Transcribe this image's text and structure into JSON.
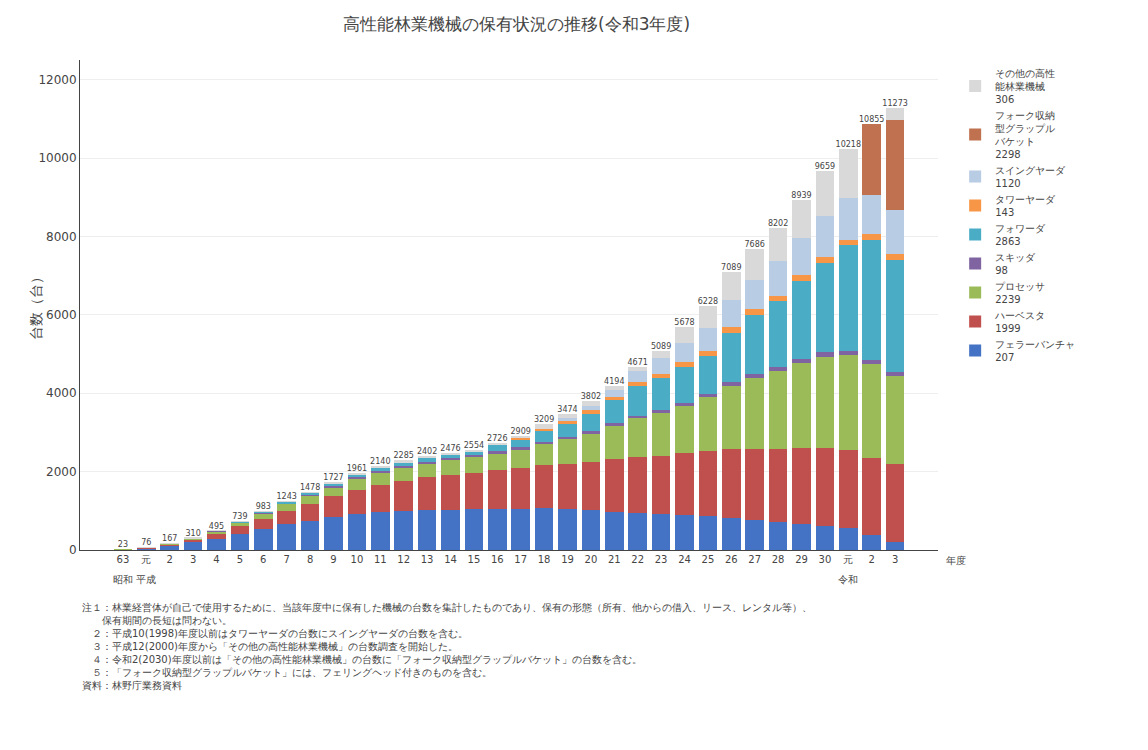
{
  "chart_data": {
    "type": "bar",
    "stacked": true,
    "title": "高性能林業機械の保有状況の推移(令和3年度)",
    "ylabel": "台数（台）",
    "xlabel": "年度",
    "categories": [
      "63",
      "元",
      "2",
      "3",
      "4",
      "5",
      "6",
      "7",
      "8",
      "9",
      "10",
      "11",
      "12",
      "13",
      "14",
      "15",
      "16",
      "17",
      "18",
      "19",
      "20",
      "21",
      "22",
      "23",
      "24",
      "25",
      "26",
      "27",
      "28",
      "29",
      "30",
      "元",
      "2",
      "3"
    ],
    "annotations": [
      {
        "text": "昭和",
        "x": 0
      },
      {
        "text": "平成",
        "x": 1
      },
      {
        "text": "令和",
        "x": 31
      }
    ],
    "series": [
      {
        "name": "フェラーバンチャ\n207",
        "color": "#4472C4",
        "values": [
          16,
          50,
          105,
          195,
          290,
          415,
          530,
          655,
          750,
          845,
          925,
          975,
          1000,
          1020,
          1030,
          1035,
          1050,
          1055,
          1060,
          1040,
          1010,
          980,
          950,
          920,
          890,
          860,
          810,
          760,
          710,
          660,
          610,
          560,
          380,
          207
        ]
      },
      {
        "name": "ハーベスタ\n1999",
        "color": "#C0504D",
        "values": [
          5,
          15,
          40,
          75,
          120,
          185,
          260,
          345,
          420,
          520,
          610,
          690,
          760,
          830,
          890,
          940,
          990,
          1045,
          1110,
          1160,
          1240,
          1340,
          1420,
          1490,
          1580,
          1660,
          1760,
          1820,
          1870,
          1940,
          1985,
          2000,
          1970,
          1999
        ]
      },
      {
        "name": "プロセッサ\n2239",
        "color": "#9BBB59",
        "values": [
          2,
          8,
          17,
          30,
          65,
          100,
          150,
          175,
          215,
          240,
          280,
          310,
          340,
          360,
          380,
          400,
          430,
          470,
          540,
          620,
          720,
          850,
          990,
          1090,
          1210,
          1380,
          1620,
          1820,
          1980,
          2170,
          2340,
          2410,
          2390,
          2239
        ]
      },
      {
        "name": "スキッダ\n98",
        "color": "#8064A2",
        "values": [
          0,
          2,
          4,
          5,
          10,
          14,
          18,
          23,
          28,
          32,
          36,
          40,
          42,
          44,
          45,
          47,
          48,
          50,
          52,
          55,
          58,
          62,
          67,
          73,
          78,
          85,
          92,
          96,
          100,
          105,
          108,
          110,
          105,
          98
        ]
      },
      {
        "name": "フォワーダ\n2863",
        "color": "#4BACC6",
        "values": [
          0,
          0,
          0,
          0,
          5,
          10,
          14,
          28,
          45,
          60,
          75,
          90,
          100,
          108,
          85,
          82,
          148,
          199,
          277,
          339,
          454,
          582,
          754,
          806,
          900,
          953,
          1257,
          1500,
          1682,
          1994,
          2276,
          2688,
          3060,
          2863
        ]
      },
      {
        "name": "タワーヤーダ\n143",
        "color": "#F79646",
        "values": [
          0,
          0,
          0,
          0,
          0,
          0,
          0,
          0,
          0,
          0,
          0,
          0,
          0,
          0,
          0,
          0,
          0,
          30,
          50,
          65,
          80,
          95,
          110,
          120,
          130,
          140,
          148,
          148,
          145,
          150,
          155,
          150,
          148,
          143
        ]
      },
      {
        "name": "スイングヤーダ\n1120",
        "color": "#B8CCE4",
        "values": [
          0,
          0,
          0,
          0,
          0,
          0,
          0,
          0,
          0,
          0,
          0,
          0,
          0,
          0,
          0,
          0,
          0,
          0,
          0,
          90,
          120,
          185,
          280,
          390,
          490,
          590,
          692,
          752,
          875,
          950,
          1035,
          1050,
          1002,
          1120
        ]
      },
      {
        "name": "フォーク収納\n型グラップル\nバケット\n2298",
        "color": "#C0714F",
        "values": [
          0,
          0,
          0,
          0,
          0,
          0,
          0,
          0,
          0,
          0,
          0,
          0,
          0,
          0,
          0,
          0,
          0,
          0,
          0,
          0,
          0,
          0,
          0,
          0,
          0,
          0,
          0,
          0,
          0,
          0,
          0,
          0,
          1800,
          2298
        ]
      },
      {
        "name": "その他の高性\n能林業機械\n306",
        "color": "#D9D9D9",
        "values": [
          0,
          1,
          1,
          5,
          5,
          15,
          11,
          17,
          20,
          30,
          35,
          35,
          43,
          40,
          46,
          50,
          60,
          60,
          120,
          105,
          120,
          100,
          100,
          200,
          400,
          560,
          710,
          790,
          840,
          970,
          1150,
          1250,
          0,
          306
        ]
      }
    ],
    "totals": [
      23,
      76,
      167,
      310,
      495,
      739,
      983,
      1243,
      1478,
      1727,
      1961,
      2140,
      2285,
      2402,
      2476,
      2554,
      2726,
      2909,
      3209,
      3474,
      3802,
      4194,
      4671,
      5089,
      5678,
      6228,
      7089,
      7686,
      8202,
      8939,
      9659,
      10218,
      10855,
      11273
    ],
    "ylim": [
      0,
      12500
    ],
    "yticks": [
      0,
      2000,
      4000,
      6000,
      8000,
      10000,
      12000
    ],
    "grid": true,
    "legend": "right",
    "notes": [
      "注１：林業経営体が自己で使用するために、当該年度中に保有した機械の台数を集計したものであり、保有の形態（所有、他からの借入、リース、レンタル等）、",
      "　　保有期間の長短は問わない。",
      "　２：平成10(1998)年度以前はタワーヤーダの台数にスイングヤーダの台数を含む。",
      "　３：平成12(2000)年度から「その他の高性能林業機械」の台数調査を開始した。",
      "　４：令和2(2030)年度以前は「その他の高性能林業機械」の台数に「フォーク収納型グラップルバケット」の台数を含む。",
      "　５：「フォーク収納型グラップルバケット」には、フェリングヘッド付きのものを含む。",
      "資料：林野庁業務資料"
    ]
  }
}
